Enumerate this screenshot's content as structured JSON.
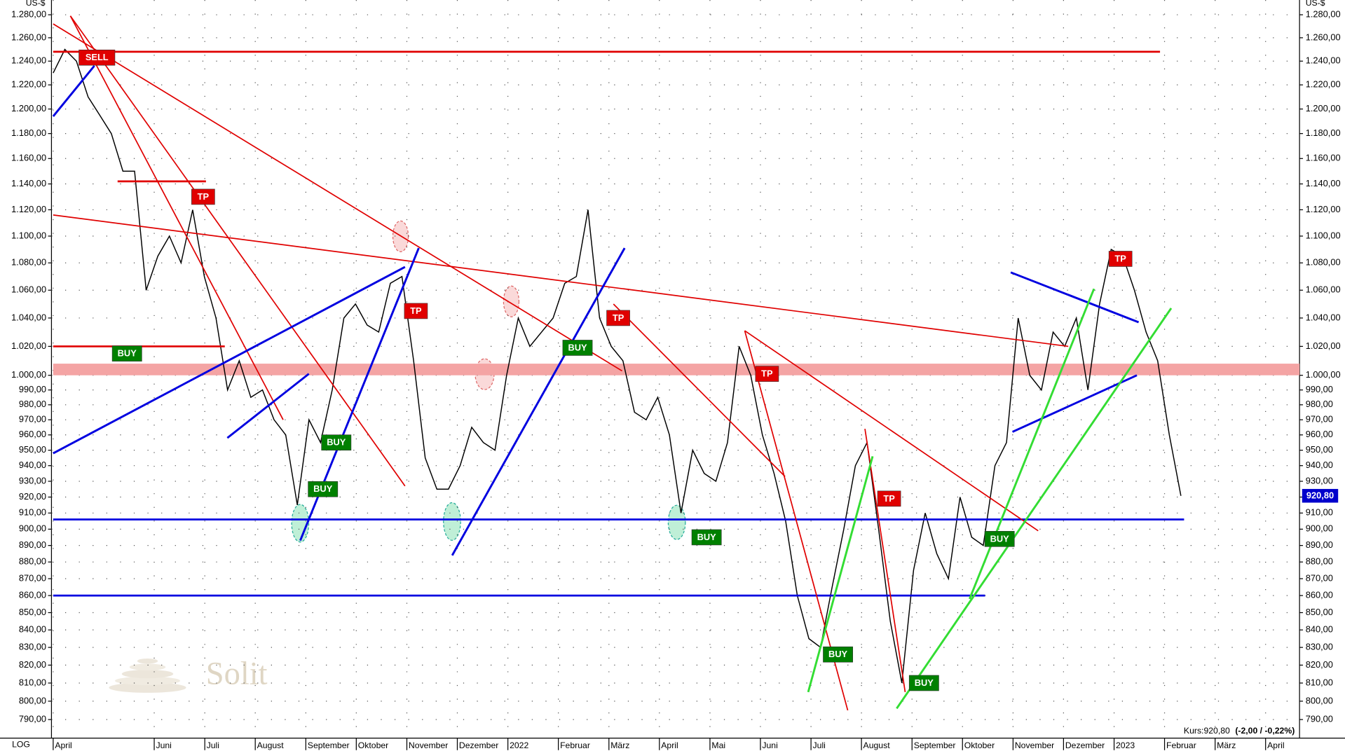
{
  "chart_data": {
    "type": "line",
    "ylabel": "US-$",
    "scale_label": "LOG",
    "log_scale": true,
    "grid": true,
    "color": "#000000",
    "watermark": "Solit",
    "price_tag": "920,80",
    "footer": "Kurs:920,80",
    "footer_change": "(-2,00 / -0,22%)",
    "xlim": [
      0,
      107.2
    ],
    "ylim": [
      780,
      1293
    ],
    "xticks": [
      {
        "value": 0,
        "label": "April"
      },
      {
        "value": 8.69,
        "label": "Juni"
      },
      {
        "value": 13.04,
        "label": "Juli"
      },
      {
        "value": 17.38,
        "label": "August"
      },
      {
        "value": 21.73,
        "label": "September"
      },
      {
        "value": 26.07,
        "label": "Oktober"
      },
      {
        "value": 30.42,
        "label": "November"
      },
      {
        "value": 34.76,
        "label": "Dezember"
      },
      {
        "value": 39.11,
        "label": "2022"
      },
      {
        "value": 43.45,
        "label": "Februar"
      },
      {
        "value": 47.8,
        "label": "März"
      },
      {
        "value": 52.14,
        "label": "April"
      },
      {
        "value": 56.49,
        "label": "Mai"
      },
      {
        "value": 60.83,
        "label": "Juni"
      },
      {
        "value": 65.18,
        "label": "Juli"
      },
      {
        "value": 69.52,
        "label": "August"
      },
      {
        "value": 73.87,
        "label": "September"
      },
      {
        "value": 78.21,
        "label": "Oktober"
      },
      {
        "value": 82.56,
        "label": "November"
      },
      {
        "value": 86.9,
        "label": "Dezember"
      },
      {
        "value": 91.25,
        "label": "2023"
      },
      {
        "value": 95.59,
        "label": "Februar"
      },
      {
        "value": 99.94,
        "label": "März"
      },
      {
        "value": 104.28,
        "label": "April"
      }
    ],
    "yticks": [
      {
        "value": 790,
        "label": "790,00"
      },
      {
        "value": 800,
        "label": "800,00"
      },
      {
        "value": 810,
        "label": "810,00"
      },
      {
        "value": 820,
        "label": "820,00"
      },
      {
        "value": 830,
        "label": "830,00"
      },
      {
        "value": 840,
        "label": "840,00"
      },
      {
        "value": 850,
        "label": "850,00"
      },
      {
        "value": 860,
        "label": "860,00"
      },
      {
        "value": 870,
        "label": "870,00"
      },
      {
        "value": 880,
        "label": "880,00"
      },
      {
        "value": 890,
        "label": "890,00"
      },
      {
        "value": 900,
        "label": "900,00"
      },
      {
        "value": 910,
        "label": "910,00"
      },
      {
        "value": 920,
        "label": "920,00"
      },
      {
        "value": 930,
        "label": "930,00"
      },
      {
        "value": 940,
        "label": "940,00"
      },
      {
        "value": 950,
        "label": "950,00"
      },
      {
        "value": 960,
        "label": "960,00"
      },
      {
        "value": 970,
        "label": "970,00"
      },
      {
        "value": 980,
        "label": "980,00"
      },
      {
        "value": 990,
        "label": "990,00"
      },
      {
        "value": 1000,
        "label": "1.000,00"
      },
      {
        "value": 1020,
        "label": "1.020,00"
      },
      {
        "value": 1040,
        "label": "1.040,00"
      },
      {
        "value": 1060,
        "label": "1.060,00"
      },
      {
        "value": 1080,
        "label": "1.080,00"
      },
      {
        "value": 1100,
        "label": "1.100,00"
      },
      {
        "value": 1120,
        "label": "1.120,00"
      },
      {
        "value": 1140,
        "label": "1.140,00"
      },
      {
        "value": 1160,
        "label": "1.160,00"
      },
      {
        "value": 1180,
        "label": "1.180,00"
      },
      {
        "value": 1200,
        "label": "1.200,00"
      },
      {
        "value": 1220,
        "label": "1.220,00"
      },
      {
        "value": 1240,
        "label": "1.240,00"
      },
      {
        "value": 1260,
        "label": "1.260,00"
      },
      {
        "value": 1280,
        "label": "1.280,00"
      }
    ],
    "x": [
      0,
      1,
      2,
      3,
      4,
      5,
      6,
      7,
      8,
      9,
      10,
      11,
      12,
      13,
      14,
      15,
      16,
      17,
      18,
      19,
      20,
      21,
      22,
      23,
      24,
      25,
      26,
      27,
      28,
      29,
      30,
      31,
      32,
      33,
      34,
      35,
      36,
      37,
      38,
      39,
      40,
      41,
      42,
      43,
      44,
      45,
      46,
      47,
      48,
      49,
      50,
      51,
      52,
      53,
      54,
      55,
      56,
      57,
      58,
      59,
      60,
      61,
      62,
      63,
      64,
      65,
      66,
      67,
      68,
      69,
      70,
      71,
      72,
      73,
      74,
      75,
      76,
      77,
      78,
      79,
      80,
      81,
      82,
      83,
      84,
      85,
      86,
      87,
      88,
      89,
      90,
      91,
      92,
      93,
      94,
      95,
      96,
      97
    ],
    "values": [
      1230,
      1250,
      1240,
      1210,
      1195,
      1180,
      1150,
      1150,
      1060,
      1085,
      1100,
      1080,
      1120,
      1070,
      1040,
      990,
      1010,
      985,
      990,
      970,
      960,
      915,
      970,
      955,
      990,
      1040,
      1050,
      1035,
      1030,
      1065,
      1070,
      1010,
      945,
      925,
      925,
      940,
      965,
      955,
      950,
      1000,
      1040,
      1020,
      1030,
      1040,
      1065,
      1070,
      1120,
      1040,
      1020,
      1010,
      975,
      970,
      985,
      960,
      910,
      950,
      935,
      930,
      955,
      1020,
      1000,
      960,
      935,
      905,
      860,
      835,
      830,
      865,
      900,
      940,
      955,
      900,
      845,
      810,
      875,
      910,
      885,
      870,
      920,
      895,
      890,
      940,
      955,
      1040,
      1000,
      990,
      1030,
      1020,
      1040,
      990,
      1050,
      1090,
      1085,
      1060,
      1030,
      1010,
      960,
      920.8
    ],
    "bands": [
      {
        "color": "#f4a4a4",
        "x": [
          0,
          107.2
        ],
        "y": [
          1000,
          1008
        ]
      }
    ],
    "trend_lines": [
      {
        "color": "#e00000",
        "x": [
          0,
          95.2
        ],
        "y": [
          1248,
          1248
        ]
      },
      {
        "color": "#0000e0",
        "x": [
          0,
          97.27
        ],
        "y": [
          906,
          906
        ]
      },
      {
        "color": "#0000e0",
        "x": [
          0,
          80.15
        ],
        "y": [
          860,
          860
        ]
      },
      {
        "color": "#e00000",
        "x": [
          0,
          14.76
        ],
        "y": [
          1020,
          1020
        ]
      },
      {
        "color": "#e00000",
        "x": [
          5.54,
          13.14
        ],
        "y": [
          1142,
          1142
        ]
      },
      {
        "color": "#e00000",
        "x": [
          0,
          48.93
        ],
        "y": [
          1272,
          1003
        ]
      },
      {
        "color": "#e00000",
        "x": [
          1.48,
          30.26
        ],
        "y": [
          1279,
          927
        ]
      },
      {
        "color": "#e00000",
        "x": [
          1.48,
          19.78
        ],
        "y": [
          1279,
          970
        ]
      },
      {
        "color": "#e00000",
        "x": [
          0,
          87.31
        ],
        "y": [
          1116,
          1020
        ]
      },
      {
        "color": "#e00000",
        "x": [
          48.19,
          62.95
        ],
        "y": [
          1050,
          933
        ]
      },
      {
        "color": "#e00000",
        "x": [
          59.48,
          84.72
        ],
        "y": [
          1031,
          899
        ]
      },
      {
        "color": "#e00000",
        "x": [
          59.48,
          68.34
        ],
        "y": [
          1031,
          795
        ]
      },
      {
        "color": "#e00000",
        "x": [
          69.82,
          73.28
        ],
        "y": [
          964,
          805
        ]
      },
      {
        "color": "#0000e0",
        "x": [
          0,
          3.54
        ],
        "y": [
          1194,
          1236
        ]
      },
      {
        "color": "#0000e0",
        "x": [
          0,
          30.26
        ],
        "y": [
          948,
          1077
        ]
      },
      {
        "color": "#0000e0",
        "x": [
          14.98,
          21.99
        ],
        "y": [
          958,
          1001
        ]
      },
      {
        "color": "#0000e0",
        "x": [
          21.25,
          31.44
        ],
        "y": [
          893,
          1091
        ]
      },
      {
        "color": "#0000e0",
        "x": [
          34.32,
          49.15
        ],
        "y": [
          884,
          1091
        ]
      },
      {
        "color": "#0000e0",
        "x": [
          82.36,
          93.36
        ],
        "y": [
          1073,
          1037
        ]
      },
      {
        "color": "#0000e0",
        "x": [
          82.51,
          93.21
        ],
        "y": [
          962,
          1000
        ]
      },
      {
        "color": "#33dd33",
        "x": [
          64.94,
          70.48
        ],
        "y": [
          805,
          946
        ]
      },
      {
        "color": "#33dd33",
        "x": [
          72.55,
          96.16
        ],
        "y": [
          796,
          1047
        ]
      },
      {
        "color": "#33dd33",
        "x": [
          78.82,
          89.52
        ],
        "y": [
          858,
          1061
        ]
      }
    ],
    "signals": [
      {
        "label": "SELL",
        "color": "#e00000",
        "x": 3.76,
        "y": 1243
      },
      {
        "label": "TP",
        "color": "#e00000",
        "x": 12.9,
        "y": 1130
      },
      {
        "label": "BUY",
        "color": "#008000",
        "x": 6.35,
        "y": 1015
      },
      {
        "label": "TP",
        "color": "#e00000",
        "x": 31.2,
        "y": 1045
      },
      {
        "label": "BUY",
        "color": "#008000",
        "x": 24.35,
        "y": 955
      },
      {
        "label": "BUY",
        "color": "#008000",
        "x": 23.2,
        "y": 925
      },
      {
        "label": "BUY",
        "color": "#008000",
        "x": 45.1,
        "y": 1019
      },
      {
        "label": "TP",
        "color": "#e00000",
        "x": 48.6,
        "y": 1040
      },
      {
        "label": "TP",
        "color": "#e00000",
        "x": 61.4,
        "y": 1001
      },
      {
        "label": "BUY",
        "color": "#008000",
        "x": 56.2,
        "y": 895
      },
      {
        "label": "TP",
        "color": "#e00000",
        "x": 71.9,
        "y": 919
      },
      {
        "label": "BUY",
        "color": "#008000",
        "x": 67.5,
        "y": 826
      },
      {
        "label": "BUY",
        "color": "#008000",
        "x": 74.9,
        "y": 810
      },
      {
        "label": "BUY",
        "color": "#008000",
        "x": 81.4,
        "y": 894
      },
      {
        "label": "TP",
        "color": "#e00000",
        "x": 91.8,
        "y": 1083
      }
    ]
  }
}
